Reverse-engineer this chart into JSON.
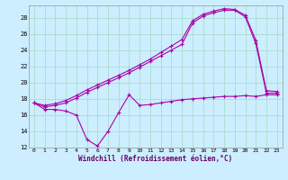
{
  "xlabel": "Windchill (Refroidissement éolien,°C)",
  "bg_color": "#cceeff",
  "grid_color": "#aaddcc",
  "line_color": "#aa00aa",
  "xlim": [
    -0.5,
    23.5
  ],
  "ylim": [
    12,
    29.5
  ],
  "yticks": [
    12,
    14,
    16,
    18,
    20,
    22,
    24,
    26,
    28
  ],
  "xticks": [
    0,
    1,
    2,
    3,
    4,
    5,
    6,
    7,
    8,
    9,
    10,
    11,
    12,
    13,
    14,
    15,
    16,
    17,
    18,
    19,
    20,
    21,
    22,
    23
  ],
  "line1_x": [
    0,
    1,
    2,
    3,
    4,
    5,
    6,
    7,
    8,
    9,
    10,
    11,
    12,
    13,
    14,
    15,
    16,
    17,
    18,
    19,
    20,
    21,
    22,
    23
  ],
  "line1_y": [
    17.5,
    16.7,
    16.7,
    16.5,
    16.0,
    13.0,
    12.2,
    14.0,
    16.3,
    18.5,
    17.2,
    17.3,
    17.5,
    17.7,
    17.9,
    18.0,
    18.1,
    18.2,
    18.3,
    18.3,
    18.4,
    18.3,
    18.5,
    18.5
  ],
  "line2_x": [
    0,
    1,
    2,
    3,
    4,
    5,
    6,
    7,
    8,
    9,
    10,
    11,
    12,
    13,
    14,
    15,
    16,
    17,
    18,
    19,
    20,
    21,
    22,
    23
  ],
  "line2_y": [
    17.5,
    17.0,
    17.2,
    17.5,
    18.1,
    18.8,
    19.4,
    20.0,
    20.6,
    21.2,
    21.9,
    22.6,
    23.3,
    24.0,
    24.7,
    27.3,
    28.2,
    28.6,
    28.9,
    28.9,
    28.1,
    24.8,
    18.7,
    18.7
  ],
  "line3_x": [
    0,
    1,
    2,
    3,
    4,
    5,
    6,
    7,
    8,
    9,
    10,
    11,
    12,
    13,
    14,
    15,
    16,
    17,
    18,
    19,
    20,
    21,
    22,
    23
  ],
  "line3_y": [
    17.5,
    17.2,
    17.4,
    17.8,
    18.4,
    19.1,
    19.7,
    20.3,
    20.9,
    21.5,
    22.2,
    22.9,
    23.7,
    24.5,
    25.3,
    27.6,
    28.4,
    28.8,
    29.1,
    29.0,
    28.3,
    25.2,
    19.0,
    18.9
  ]
}
